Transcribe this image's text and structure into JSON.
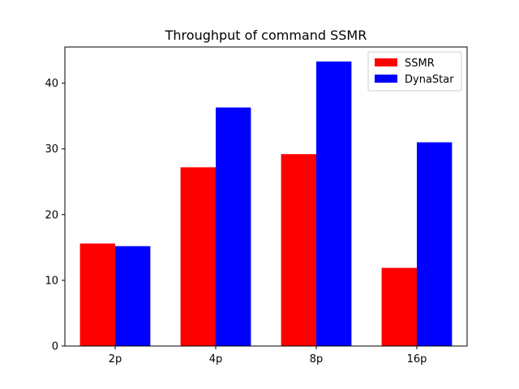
{
  "chart_data": {
    "type": "bar",
    "title": "Throughput of command SSMR",
    "xlabel": "",
    "ylabel": "",
    "categories": [
      "2p",
      "4p",
      "8p",
      "16p"
    ],
    "series": [
      {
        "name": "SSMR",
        "color": "#ff0000",
        "values": [
          15.6,
          27.2,
          29.2,
          11.9
        ]
      },
      {
        "name": "DynaStar",
        "color": "#0000ff",
        "values": [
          15.2,
          36.3,
          43.3,
          31.0
        ]
      }
    ],
    "ylim": [
      0,
      45.5
    ],
    "yticks": [
      0,
      10,
      20,
      30,
      40
    ],
    "grid": false,
    "legend": "top-right"
  }
}
